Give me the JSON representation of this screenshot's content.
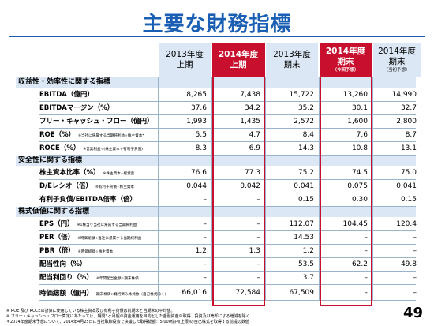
{
  "title": "主要な財務指標",
  "columns": [
    {
      "line1": "2013年度",
      "line2": "上期",
      "sub": "",
      "style": "blue"
    },
    {
      "line1": "2014年度",
      "line2": "上期",
      "sub": "",
      "style": "red"
    },
    {
      "line1": "2013年度",
      "line2": "期末",
      "sub": "",
      "style": "blue"
    },
    {
      "line1": "2014年度",
      "line2": "期末",
      "sub": "（今回予想）",
      "style": "red"
    },
    {
      "line1": "2014年度",
      "line2": "期末",
      "sub": "（当初予想）",
      "style": "blue"
    }
  ],
  "sections": [
    {
      "title": "収益性・効率性に関する指標"
    },
    {
      "title": "安全性に関する指標"
    },
    {
      "title": "株式価値に関する指標"
    }
  ],
  "rows": [
    {
      "label": "EBITDA（億円）",
      "note": "",
      "values": [
        "8,265",
        "7,438",
        "15,722",
        "13,260",
        "14,990"
      ]
    },
    {
      "label": "EBITDAマージン（%）",
      "note": "",
      "values": [
        "37.6",
        "34.2",
        "35.2",
        "30.1",
        "32.7"
      ]
    },
    {
      "label": "フリー・キャッシュ・フロー（億円）",
      "note": "",
      "values": [
        "1,993",
        "1,435",
        "2,572",
        "1,600",
        "2,800"
      ]
    },
    {
      "label": "ROE（%）",
      "note": "※当社に帰属する当期純利益÷株主資本*",
      "values": [
        "5.5",
        "4.7",
        "8.4",
        "7.6",
        "8.7"
      ]
    },
    {
      "label": "ROCE（%）",
      "note": "※営業利益÷(株主資本＋有利子負債)*",
      "values": [
        "8.3",
        "6.9",
        "14.3",
        "10.8",
        "13.1"
      ]
    },
    {
      "label": "株主資本比率（%）",
      "note": "※株主資本÷総資産",
      "values": [
        "76.6",
        "77.3",
        "75.2",
        "74.5",
        "75.0"
      ]
    },
    {
      "label": "D/Eレシオ（倍）",
      "note": "※有利子負債÷株主資本",
      "values": [
        "0.044",
        "0.042",
        "0.041",
        "0.075",
        "0.041"
      ]
    },
    {
      "label": "有利子負債/EBITDA倍率（倍）",
      "note": "",
      "values": [
        "–",
        "–",
        "0.15",
        "0.30",
        "0.15"
      ]
    },
    {
      "label": "EPS（円）",
      "note": "※1株当り当社に帰属する当期純利益",
      "values": [
        "–",
        "–",
        "112.07",
        "104.45",
        "120.4"
      ]
    },
    {
      "label": "PER（倍）",
      "note": "※時価総額÷当社に帰属する当期純利益",
      "values": [
        "–",
        "–",
        "14.53",
        "–",
        "–"
      ]
    },
    {
      "label": "PBR（倍）",
      "note": "※時価総額÷株主資本",
      "values": [
        "1.2",
        "1.3",
        "1.2",
        "–",
        "–"
      ]
    },
    {
      "label": "配当性向（%）",
      "note": "",
      "values": [
        "–",
        "–",
        "53.5",
        "62.2",
        "49.8"
      ]
    },
    {
      "label": "配当利回り（%）",
      "note": "※年間配当金額÷期末株価",
      "values": [
        "–",
        "–",
        "3.7",
        "–",
        "–"
      ]
    },
    {
      "label": "時価総額（億円）",
      "note": "期末株価×発行済み株式数（自己株式除く）",
      "values": [
        "66,016",
        "72,584",
        "67,509",
        "–",
        "–"
      ]
    }
  ],
  "footnotes": [
    "※ ROE 及び ROCEの計算に使用している株主資本及び有利子負債は前期末と当期末の平均値。",
    "※ フリー・キャッシュ・フロー算定にあたっては、期間3ヶ月超の資金運用を目的とした金融資産の取得、投資及び売却による増減を除く",
    "＊2014年度期末予想について、2014年4月25日に当社取締役会で決議した取得総額：5,000億円(上限)の自己株式を取得する前提の数値"
  ],
  "page_number": "49"
}
